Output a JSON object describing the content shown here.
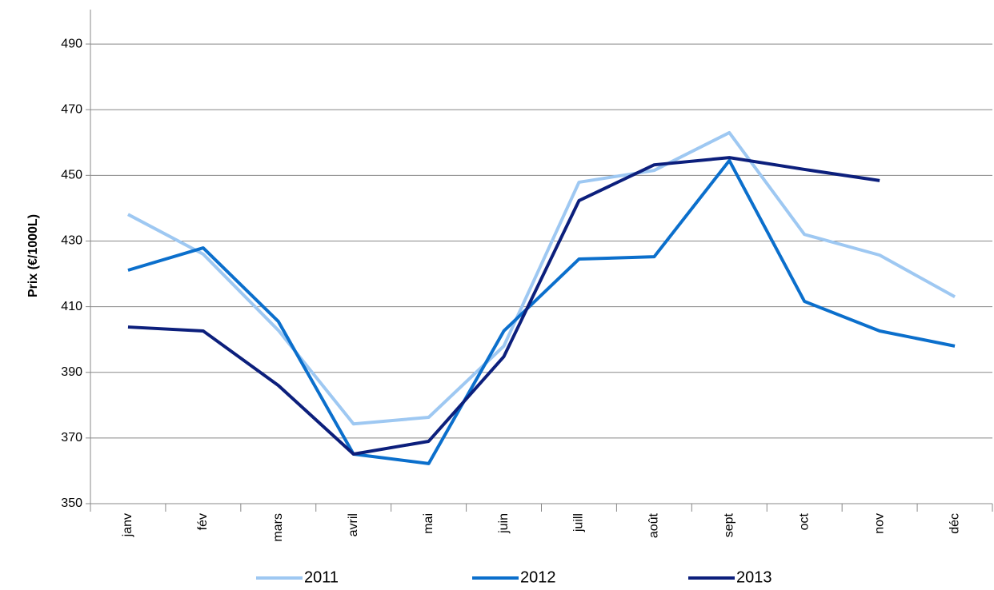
{
  "chart_data": {
    "type": "line",
    "y_label": "Prix (€/1000L)",
    "categories": [
      "janv",
      "fév",
      "mars",
      "avril",
      "mai",
      "juin",
      "juill",
      "août",
      "sept",
      "oct",
      "nov",
      "déc"
    ],
    "series": [
      {
        "name": "2011",
        "color": "#9ec8f2",
        "values": [
          438.1,
          426,
          402.8,
          374.3,
          376.3,
          398,
          447.9,
          451.5,
          463,
          432,
          425.7,
          413
        ]
      },
      {
        "name": "2012",
        "color": "#0b6fcc",
        "values": [
          421.1,
          427.9,
          405.5,
          365.1,
          362.2,
          402.6,
          424.5,
          425.2,
          454.5,
          411.6,
          402.6,
          398
        ]
      },
      {
        "name": "2013",
        "color": "#0c1f7c",
        "values": [
          403.8,
          402.6,
          386,
          365.1,
          369,
          394.8,
          442.3,
          453.2,
          455.4,
          451.8,
          448.4,
          null
        ]
      }
    ],
    "ylim": [
      350,
      500
    ],
    "yticks": [
      350,
      370,
      390,
      410,
      430,
      450,
      470,
      490
    ],
    "grid": true,
    "legend": "bottom"
  }
}
